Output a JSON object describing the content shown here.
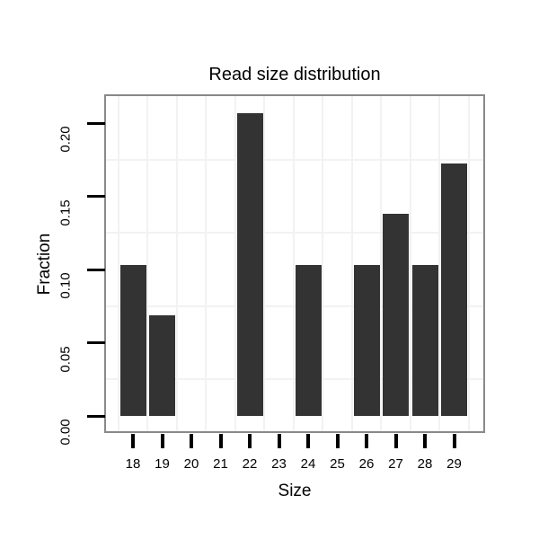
{
  "chart_data": {
    "type": "bar",
    "title": "Read size distribution",
    "xlabel": "Size",
    "ylabel": "Fraction",
    "categories": [
      "18",
      "19",
      "20",
      "21",
      "22",
      "23",
      "24",
      "25",
      "26",
      "27",
      "28",
      "29"
    ],
    "values": [
      0.1034,
      0.069,
      0,
      0,
      0.2069,
      0,
      0.1034,
      0,
      0.1034,
      0.1379,
      0.1034,
      0.1724
    ],
    "y_ticks": [
      "0.00",
      "0.05",
      "0.10",
      "0.15",
      "0.20"
    ],
    "ylim": [
      -0.01,
      0.217
    ],
    "xlim": [
      17.0,
      30.0
    ],
    "grid": "minor-gridlines-only",
    "legend": "none",
    "colors": {
      "bar": "#333333",
      "panel_border": "#898989",
      "gridline": "#f2f2f2",
      "tick": "#000000",
      "text": "#000000",
      "background": "#ffffff"
    }
  }
}
